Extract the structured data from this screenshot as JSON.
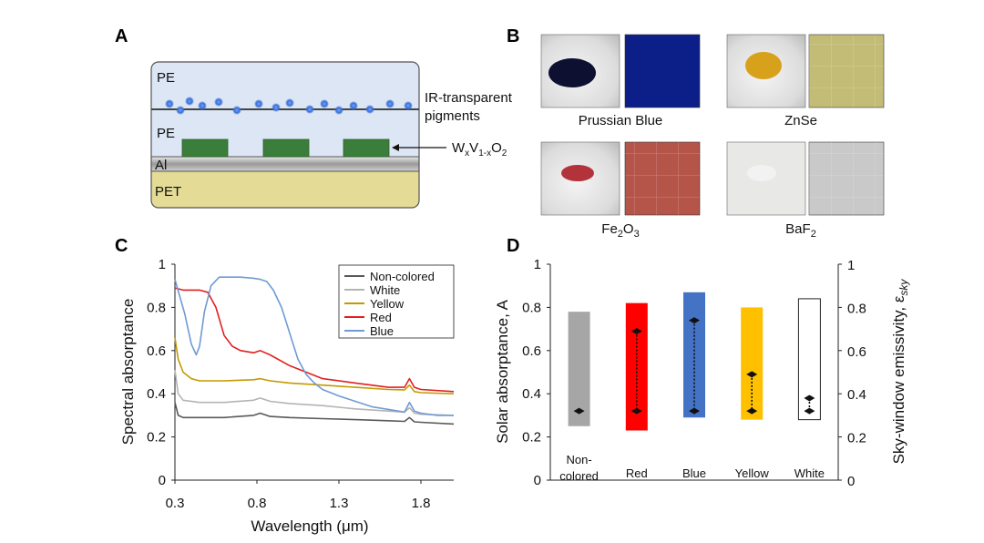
{
  "panels": {
    "A": "A",
    "B": "B",
    "C": "C",
    "D": "D"
  },
  "panelA": {
    "layers": {
      "pe_top": "PE",
      "pe_mid": "PE",
      "al": "Al",
      "pet": "PET"
    },
    "pigment_label_line1": "IR-transparent",
    "pigment_label_line2": "pigments",
    "wvo2_label": "WxV1-xO2",
    "colors": {
      "pe": "#dce6f5",
      "al": "#a6a6a6",
      "pet": "#e3db96",
      "wvo2": "#3b7d3b",
      "pigment": "#3b6fd6"
    }
  },
  "panelB": {
    "samples": [
      {
        "name": "Prussian Blue",
        "powder_color": "#0d1030",
        "film_color": "#0c1f88"
      },
      {
        "name": "ZnSe",
        "powder_color": "#d8a11c",
        "film_color": "#c2bc76"
      },
      {
        "name": "Fe2O3",
        "powder_color": "#b3333a",
        "film_color": "#b5554a"
      },
      {
        "name": "BaF2",
        "powder_color": "#f2f2f2",
        "film_color": "#c9c9c9"
      }
    ]
  },
  "chart_data": [
    {
      "type": "line",
      "panel": "C",
      "xlabel": "Wavelength (μm)",
      "ylabel": "Spectral absorptance",
      "xlim": [
        0.3,
        2.0
      ],
      "ylim": [
        0,
        1
      ],
      "xticks": [
        "0.3",
        "0.8",
        "1.3",
        "1.8"
      ],
      "yticks": [
        "0",
        "0.2",
        "0.4",
        "0.6",
        "0.8",
        "1"
      ],
      "legend_position": "top-right",
      "series": [
        {
          "name": "Non-colored",
          "color": "#595959",
          "x": [
            0.3,
            0.32,
            0.35,
            0.45,
            0.6,
            0.78,
            0.82,
            0.88,
            1.0,
            1.2,
            1.4,
            1.6,
            1.7,
            1.73,
            1.76,
            1.8,
            2.0
          ],
          "y": [
            0.36,
            0.3,
            0.29,
            0.29,
            0.29,
            0.3,
            0.31,
            0.295,
            0.29,
            0.285,
            0.28,
            0.275,
            0.272,
            0.29,
            0.27,
            0.268,
            0.26
          ]
        },
        {
          "name": "White",
          "color": "#b4b4b4",
          "x": [
            0.3,
            0.32,
            0.35,
            0.45,
            0.6,
            0.78,
            0.82,
            0.88,
            1.0,
            1.2,
            1.4,
            1.6,
            1.7,
            1.73,
            1.76,
            1.8,
            2.0
          ],
          "y": [
            0.51,
            0.4,
            0.37,
            0.36,
            0.36,
            0.37,
            0.38,
            0.365,
            0.355,
            0.345,
            0.33,
            0.32,
            0.315,
            0.335,
            0.31,
            0.305,
            0.3
          ]
        },
        {
          "name": "Yellow",
          "color": "#c49a00",
          "x": [
            0.3,
            0.32,
            0.35,
            0.4,
            0.45,
            0.6,
            0.78,
            0.82,
            0.88,
            1.0,
            1.2,
            1.4,
            1.6,
            1.7,
            1.73,
            1.76,
            1.8,
            2.0
          ],
          "y": [
            0.66,
            0.56,
            0.5,
            0.47,
            0.46,
            0.46,
            0.465,
            0.47,
            0.46,
            0.45,
            0.44,
            0.43,
            0.42,
            0.418,
            0.44,
            0.41,
            0.405,
            0.4
          ]
        },
        {
          "name": "Red",
          "color": "#e02020",
          "x": [
            0.3,
            0.35,
            0.45,
            0.5,
            0.55,
            0.6,
            0.65,
            0.7,
            0.78,
            0.82,
            0.88,
            1.0,
            1.2,
            1.4,
            1.6,
            1.7,
            1.73,
            1.76,
            1.8,
            2.0
          ],
          "y": [
            0.89,
            0.88,
            0.88,
            0.87,
            0.8,
            0.67,
            0.62,
            0.6,
            0.59,
            0.6,
            0.58,
            0.53,
            0.47,
            0.45,
            0.43,
            0.43,
            0.47,
            0.43,
            0.42,
            0.41
          ]
        },
        {
          "name": "Blue",
          "color": "#6f9bd3",
          "x": [
            0.3,
            0.33,
            0.36,
            0.4,
            0.43,
            0.45,
            0.48,
            0.52,
            0.57,
            0.6,
            0.7,
            0.78,
            0.82,
            0.86,
            0.9,
            0.95,
            1.0,
            1.05,
            1.1,
            1.15,
            1.2,
            1.3,
            1.5,
            1.7,
            1.73,
            1.76,
            1.8,
            1.9,
            2.0
          ],
          "y": [
            0.93,
            0.85,
            0.77,
            0.63,
            0.58,
            0.62,
            0.78,
            0.9,
            0.94,
            0.94,
            0.94,
            0.935,
            0.93,
            0.92,
            0.88,
            0.8,
            0.68,
            0.56,
            0.49,
            0.45,
            0.42,
            0.39,
            0.34,
            0.315,
            0.36,
            0.32,
            0.31,
            0.3,
            0.3
          ]
        }
      ]
    },
    {
      "type": "bar",
      "panel": "D",
      "ylabel_left": "Solar absorptance, A",
      "ylabel_right": "Sky-window emissivity, ε",
      "ylabel_right_sub": "sky",
      "ylim_left": [
        0,
        1
      ],
      "ylim_right": [
        0,
        1
      ],
      "yticks_left": [
        "0",
        "0.2",
        "0.4",
        "0.6",
        "0.8",
        "1"
      ],
      "yticks_right": [
        "0",
        "0.2",
        "0.4",
        "0.6",
        "0.8",
        "1"
      ],
      "categories": [
        {
          "label_lines": [
            "Non-",
            "colored"
          ],
          "color": "#a6a6a6",
          "low": 0.25,
          "high": 0.78,
          "markers": [
            0.32
          ],
          "outline": false
        },
        {
          "label_lines": [
            "Red"
          ],
          "color": "#ff0000",
          "low": 0.23,
          "high": 0.82,
          "markers": [
            0.32,
            0.69
          ],
          "outline": false
        },
        {
          "label_lines": [
            "Blue"
          ],
          "color": "#4472c4",
          "low": 0.29,
          "high": 0.87,
          "markers": [
            0.32,
            0.74
          ],
          "outline": false
        },
        {
          "label_lines": [
            "Yellow"
          ],
          "color": "#ffc000",
          "low": 0.28,
          "high": 0.8,
          "markers": [
            0.32,
            0.49
          ],
          "outline": false
        },
        {
          "label_lines": [
            "White"
          ],
          "color": "#ffffff",
          "low": 0.28,
          "high": 0.84,
          "markers": [
            0.32,
            0.38
          ],
          "outline": true
        }
      ]
    }
  ]
}
